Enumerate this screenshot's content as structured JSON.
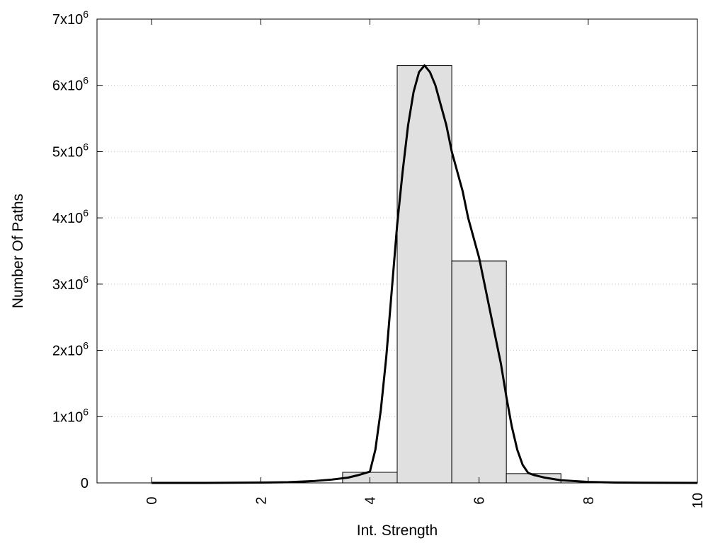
{
  "chart_data": {
    "type": "bar",
    "title": "",
    "xlabel": "Int. Strength",
    "ylabel": "Number Of Paths",
    "xlim": [
      -1,
      10
    ],
    "ylim": [
      0,
      7000000
    ],
    "grid": {
      "y": true,
      "x": false
    },
    "x_ticks": [
      0,
      2,
      4,
      6,
      8,
      10
    ],
    "y_ticks": [
      {
        "value": 0,
        "base": "0",
        "exp": ""
      },
      {
        "value": 1000000,
        "base": "1x10",
        "exp": "6"
      },
      {
        "value": 2000000,
        "base": "2x10",
        "exp": "6"
      },
      {
        "value": 3000000,
        "base": "3x10",
        "exp": "6"
      },
      {
        "value": 4000000,
        "base": "4x10",
        "exp": "6"
      },
      {
        "value": 5000000,
        "base": "5x10",
        "exp": "6"
      },
      {
        "value": 6000000,
        "base": "6x10",
        "exp": "6"
      },
      {
        "value": 7000000,
        "base": "7x10",
        "exp": "6"
      }
    ],
    "bars": [
      {
        "x": 0,
        "value": 0
      },
      {
        "x": 1,
        "value": 0
      },
      {
        "x": 2,
        "value": 0
      },
      {
        "x": 3,
        "value": 0
      },
      {
        "x": 4,
        "value": 160000
      },
      {
        "x": 5,
        "value": 6300000
      },
      {
        "x": 6,
        "value": 3350000
      },
      {
        "x": 7,
        "value": 140000
      },
      {
        "x": 8,
        "value": 0
      },
      {
        "x": 9,
        "value": 0
      }
    ],
    "bar_width": 1,
    "bar_color": "#e0e0e0",
    "curve": {
      "color": "#000000",
      "x": [
        0,
        1,
        2,
        2.5,
        3,
        3.3,
        3.6,
        3.8,
        4.0,
        4.1,
        4.2,
        4.3,
        4.4,
        4.5,
        4.6,
        4.7,
        4.8,
        4.9,
        5.0,
        5.1,
        5.2,
        5.3,
        5.4,
        5.5,
        5.6,
        5.7,
        5.8,
        5.9,
        6.0,
        6.1,
        6.2,
        6.3,
        6.4,
        6.5,
        6.6,
        6.7,
        6.8,
        6.9,
        7.0,
        7.2,
        7.5,
        8.0,
        8.5,
        9.0,
        9.5,
        10.0
      ],
      "y": [
        0,
        0,
        5000,
        10000,
        30000,
        50000,
        80000,
        120000,
        170000,
        500000,
        1100000,
        1900000,
        2900000,
        3900000,
        4700000,
        5400000,
        5900000,
        6200000,
        6300000,
        6200000,
        6000000,
        5700000,
        5400000,
        5000000,
        4700000,
        4400000,
        4000000,
        3700000,
        3400000,
        3000000,
        2600000,
        2200000,
        1800000,
        1300000,
        850000,
        500000,
        270000,
        150000,
        120000,
        80000,
        40000,
        15000,
        5000,
        2000,
        1000,
        0
      ]
    }
  }
}
